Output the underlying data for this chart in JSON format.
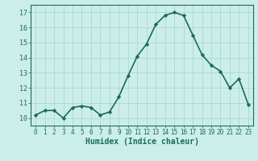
{
  "x": [
    0,
    1,
    2,
    3,
    4,
    5,
    6,
    7,
    8,
    9,
    10,
    11,
    12,
    13,
    14,
    15,
    16,
    17,
    18,
    19,
    20,
    21,
    22,
    23
  ],
  "y": [
    10.2,
    10.5,
    10.5,
    10.0,
    10.7,
    10.8,
    10.7,
    10.2,
    10.4,
    11.4,
    12.8,
    14.1,
    14.9,
    16.2,
    16.8,
    17.0,
    16.8,
    15.5,
    14.2,
    13.5,
    13.1,
    12.0,
    12.6,
    10.9
  ],
  "line_color": "#1a6b5a",
  "marker": "D",
  "marker_size": 2.2,
  "bg_color": "#cceee8",
  "grid_color": "#aad8d0",
  "xlabel": "Humidex (Indice chaleur)",
  "ylim": [
    9.5,
    17.5
  ],
  "xlim": [
    -0.5,
    23.5
  ],
  "yticks": [
    10,
    11,
    12,
    13,
    14,
    15,
    16,
    17
  ],
  "xticks": [
    0,
    1,
    2,
    3,
    4,
    5,
    6,
    7,
    8,
    9,
    10,
    11,
    12,
    13,
    14,
    15,
    16,
    17,
    18,
    19,
    20,
    21,
    22,
    23
  ],
  "tick_color": "#1a6b5a",
  "label_color": "#1a6b5a",
  "line_width": 1.2,
  "tick_fontsize": 5.5,
  "xlabel_fontsize": 7.0
}
